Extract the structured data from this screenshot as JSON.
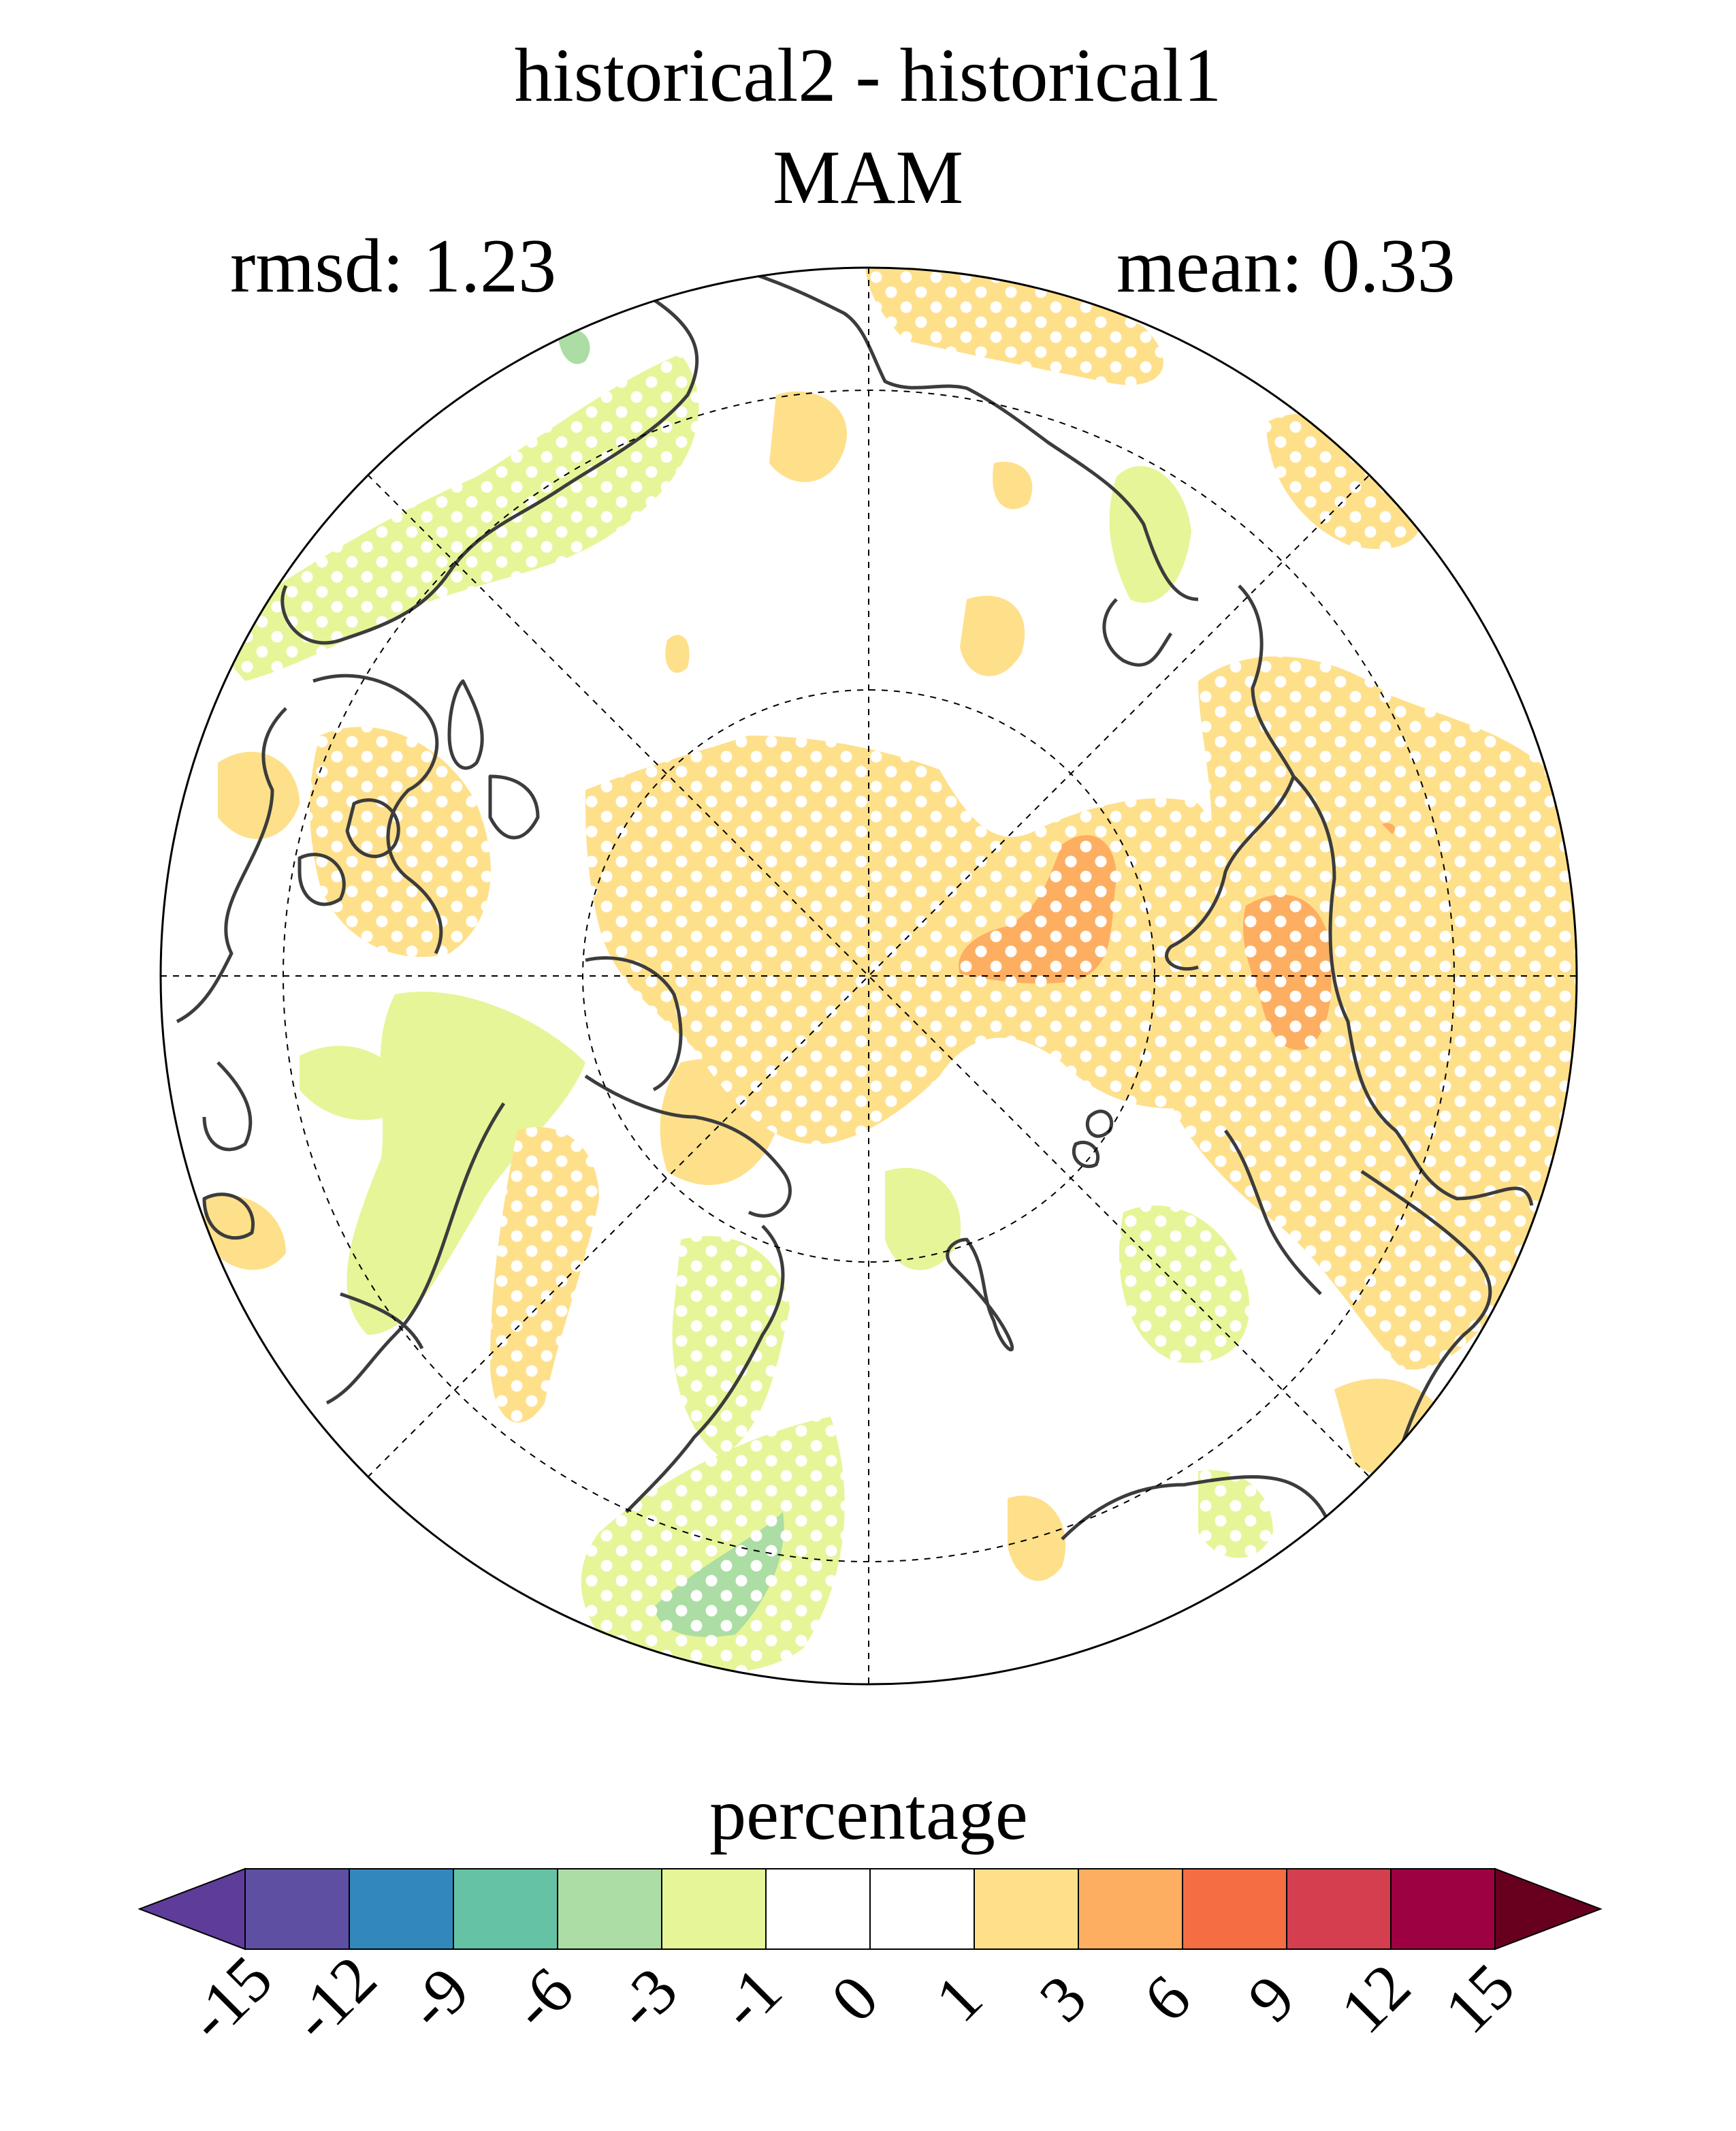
{
  "title_line1": "historical2 - historical1",
  "title_line2": "MAM",
  "rmsd_label": "rmsd: 1.23",
  "mean_label": "mean: 0.33",
  "colorbar": {
    "label": "percentage",
    "ticks": [
      "-15",
      "-12",
      "-9",
      "-6",
      "-3",
      "-1",
      "0",
      "1",
      "3",
      "6",
      "9",
      "12",
      "15"
    ],
    "colors": [
      "#5e3c99",
      "#5e4fa2",
      "#3288bd",
      "#66c2a5",
      "#abdda4",
      "#e6f598",
      "#ffffff",
      "#ffffff",
      "#fee08b",
      "#fdae61",
      "#f46d43",
      "#d53e4f",
      "#9e0142",
      "#67001f"
    ]
  },
  "map": {
    "projection": "north-polar-stereographic",
    "stippling": "white dots mark significant areas"
  }
}
